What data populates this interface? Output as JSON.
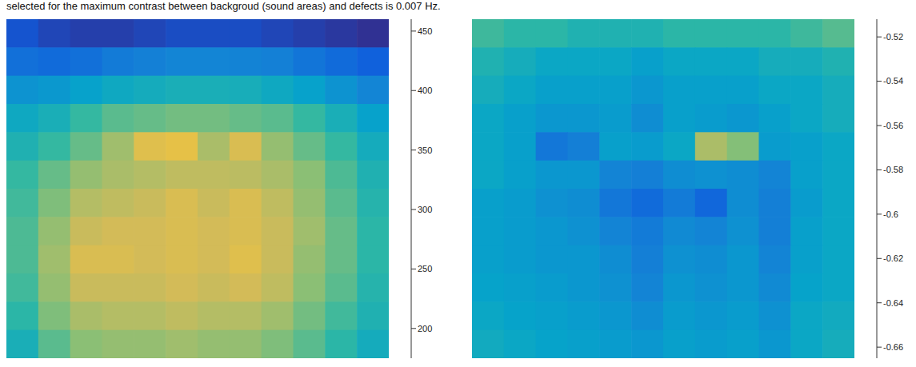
{
  "caption": "selected for the maximum contrast between backgroud (sound areas) and defects is 0.007 Hz.",
  "chart_data": [
    {
      "type": "heatmap",
      "tick_labels": false,
      "cells": [
        [
          205,
          195,
          190,
          190,
          195,
          200,
          200,
          200,
          195,
          190,
          185,
          180
        ],
        [
          230,
          225,
          230,
          240,
          245,
          250,
          250,
          248,
          245,
          235,
          225,
          215
        ],
        [
          265,
          270,
          280,
          290,
          295,
          300,
          300,
          298,
          290,
          280,
          265,
          250
        ],
        [
          290,
          300,
          320,
          335,
          340,
          345,
          345,
          340,
          335,
          320,
          300,
          280
        ],
        [
          305,
          320,
          340,
          365,
          400,
          405,
          370,
          395,
          360,
          340,
          320,
          295
        ],
        [
          320,
          340,
          360,
          370,
          375,
          380,
          380,
          378,
          370,
          355,
          330,
          305
        ],
        [
          325,
          350,
          375,
          380,
          385,
          395,
          385,
          395,
          380,
          360,
          335,
          310
        ],
        [
          330,
          360,
          385,
          390,
          390,
          395,
          390,
          395,
          385,
          365,
          340,
          315
        ],
        [
          330,
          365,
          395,
          395,
          390,
          395,
          390,
          400,
          385,
          360,
          340,
          315
        ],
        [
          325,
          360,
          385,
          385,
          385,
          390,
          385,
          390,
          380,
          355,
          335,
          310
        ],
        [
          315,
          350,
          370,
          375,
          375,
          380,
          375,
          375,
          365,
          345,
          325,
          305
        ],
        [
          300,
          335,
          355,
          360,
          360,
          365,
          360,
          360,
          350,
          335,
          315,
          295
        ]
      ],
      "colorbar": {
        "lim": [
          175,
          460
        ],
        "ticks": [
          200,
          250,
          300,
          350,
          400,
          450
        ]
      }
    },
    {
      "type": "heatmap",
      "tick_labels": false,
      "cells": [
        [
          -0.585,
          -0.59,
          -0.59,
          -0.595,
          -0.595,
          -0.595,
          -0.59,
          -0.59,
          -0.59,
          -0.59,
          -0.585,
          -0.58
        ],
        [
          -0.595,
          -0.6,
          -0.605,
          -0.605,
          -0.605,
          -0.61,
          -0.605,
          -0.605,
          -0.605,
          -0.6,
          -0.6,
          -0.595
        ],
        [
          -0.6,
          -0.605,
          -0.61,
          -0.61,
          -0.61,
          -0.615,
          -0.61,
          -0.61,
          -0.61,
          -0.605,
          -0.605,
          -0.6
        ],
        [
          -0.605,
          -0.61,
          -0.615,
          -0.615,
          -0.612,
          -0.62,
          -0.61,
          -0.612,
          -0.615,
          -0.61,
          -0.605,
          -0.6
        ],
        [
          -0.605,
          -0.61,
          -0.632,
          -0.628,
          -0.61,
          -0.612,
          -0.605,
          -0.56,
          -0.57,
          -0.612,
          -0.61,
          -0.605
        ],
        [
          -0.605,
          -0.61,
          -0.615,
          -0.615,
          -0.625,
          -0.628,
          -0.62,
          -0.618,
          -0.62,
          -0.625,
          -0.61,
          -0.605
        ],
        [
          -0.61,
          -0.612,
          -0.618,
          -0.62,
          -0.632,
          -0.638,
          -0.63,
          -0.64,
          -0.62,
          -0.628,
          -0.612,
          -0.605
        ],
        [
          -0.61,
          -0.612,
          -0.615,
          -0.618,
          -0.625,
          -0.63,
          -0.622,
          -0.625,
          -0.618,
          -0.628,
          -0.61,
          -0.605
        ],
        [
          -0.61,
          -0.612,
          -0.615,
          -0.615,
          -0.62,
          -0.628,
          -0.618,
          -0.62,
          -0.615,
          -0.625,
          -0.61,
          -0.605
        ],
        [
          -0.608,
          -0.61,
          -0.612,
          -0.615,
          -0.618,
          -0.625,
          -0.615,
          -0.618,
          -0.615,
          -0.622,
          -0.608,
          -0.605
        ],
        [
          -0.605,
          -0.608,
          -0.61,
          -0.612,
          -0.615,
          -0.62,
          -0.612,
          -0.615,
          -0.612,
          -0.618,
          -0.605,
          -0.602
        ],
        [
          -0.602,
          -0.605,
          -0.608,
          -0.61,
          -0.612,
          -0.615,
          -0.61,
          -0.612,
          -0.61,
          -0.615,
          -0.605,
          -0.6
        ]
      ],
      "colorbar": {
        "lim": [
          -0.665,
          -0.512
        ],
        "ticks": [
          -0.66,
          -0.64,
          -0.62,
          -0.6,
          -0.58,
          -0.56,
          -0.54,
          -0.52
        ]
      }
    }
  ]
}
